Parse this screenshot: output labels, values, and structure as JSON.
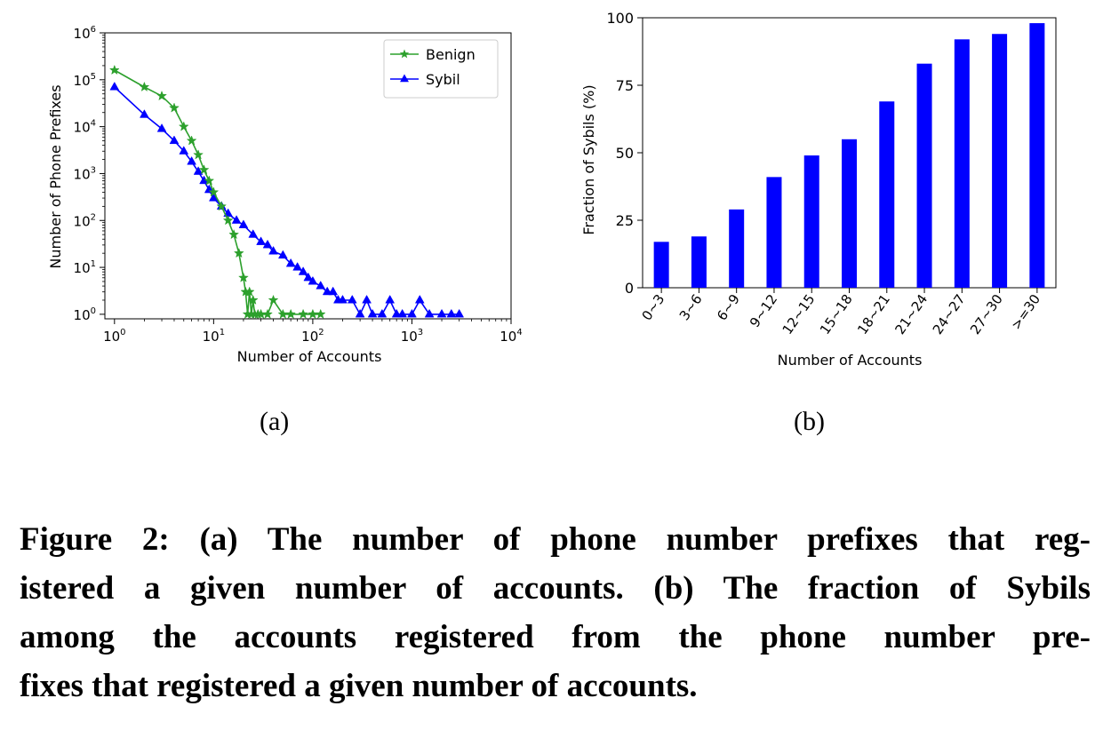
{
  "chart_data": [
    {
      "type": "line",
      "xscale": "log",
      "yscale": "log",
      "xlim": [
        0.8,
        10000
      ],
      "ylim": [
        0.8,
        1000000
      ],
      "xlabel": "Number of Accounts",
      "ylabel": "Number of Phone Prefixes",
      "xticks": [
        {
          "base": "10",
          "exp": "0"
        },
        {
          "base": "10",
          "exp": "1"
        },
        {
          "base": "10",
          "exp": "2"
        },
        {
          "base": "10",
          "exp": "3"
        },
        {
          "base": "10",
          "exp": "4"
        }
      ],
      "yticks": [
        {
          "base": "10",
          "exp": "0"
        },
        {
          "base": "10",
          "exp": "1"
        },
        {
          "base": "10",
          "exp": "2"
        },
        {
          "base": "10",
          "exp": "3"
        },
        {
          "base": "10",
          "exp": "4"
        },
        {
          "base": "10",
          "exp": "5"
        },
        {
          "base": "10",
          "exp": "6"
        }
      ],
      "legend_position": "top-right",
      "series": [
        {
          "name": "Benign",
          "color": "#2ca02c",
          "marker": "star",
          "x": [
            1,
            2,
            3,
            4,
            5,
            6,
            7,
            8,
            9,
            10,
            12,
            14,
            16,
            18,
            20,
            21,
            22,
            23,
            24,
            25,
            26,
            28,
            30,
            35,
            40,
            50,
            60,
            80,
            100,
            120
          ],
          "y": [
            160000,
            70000,
            45000,
            25000,
            10000,
            5000,
            2500,
            1200,
            700,
            400,
            200,
            100,
            50,
            20,
            6,
            3,
            1,
            3,
            1,
            2,
            1,
            1,
            1,
            1,
            2,
            1,
            1,
            1,
            1,
            1
          ]
        },
        {
          "name": "Sybil",
          "color": "#0000ff",
          "marker": "triangle",
          "x": [
            1,
            2,
            3,
            4,
            5,
            6,
            7,
            8,
            9,
            10,
            12,
            14,
            17,
            20,
            25,
            30,
            35,
            40,
            50,
            60,
            70,
            80,
            90,
            100,
            120,
            140,
            160,
            180,
            200,
            250,
            300,
            350,
            400,
            500,
            600,
            700,
            800,
            1000,
            1200,
            1500,
            2000,
            2500,
            3000
          ],
          "y": [
            70000,
            18000,
            9000,
            5000,
            3000,
            1800,
            1100,
            700,
            450,
            300,
            200,
            140,
            100,
            80,
            50,
            35,
            30,
            22,
            18,
            12,
            10,
            8,
            6,
            5,
            4,
            3,
            3,
            2,
            2,
            2,
            1,
            2,
            1,
            1,
            2,
            1,
            1,
            1,
            2,
            1,
            1,
            1,
            1
          ]
        }
      ],
      "sublabel": "(a)"
    },
    {
      "type": "bar",
      "categories": [
        "0~3",
        "3~6",
        "6~9",
        "9~12",
        "12~15",
        "15~18",
        "18~21",
        "21~24",
        "24~27",
        "27~30",
        ">=30"
      ],
      "values": [
        17,
        19,
        29,
        41,
        49,
        55,
        69,
        83,
        92,
        94,
        98
      ],
      "color": "#0000ff",
      "ylim": [
        0,
        100
      ],
      "yticks": [
        "0",
        "25",
        "50",
        "75",
        "100"
      ],
      "xlabel": "Number of Accounts",
      "ylabel": "Fraction of Sybils (%)",
      "sublabel": "(b)"
    }
  ],
  "caption": {
    "lines": [
      "Figure 2: (a) The number of phone number prefixes that reg-",
      "istered a given number of accounts. (b) The fraction of Sybils",
      "among the accounts registered from the phone number pre-",
      "fixes that registered a given number of accounts."
    ]
  }
}
